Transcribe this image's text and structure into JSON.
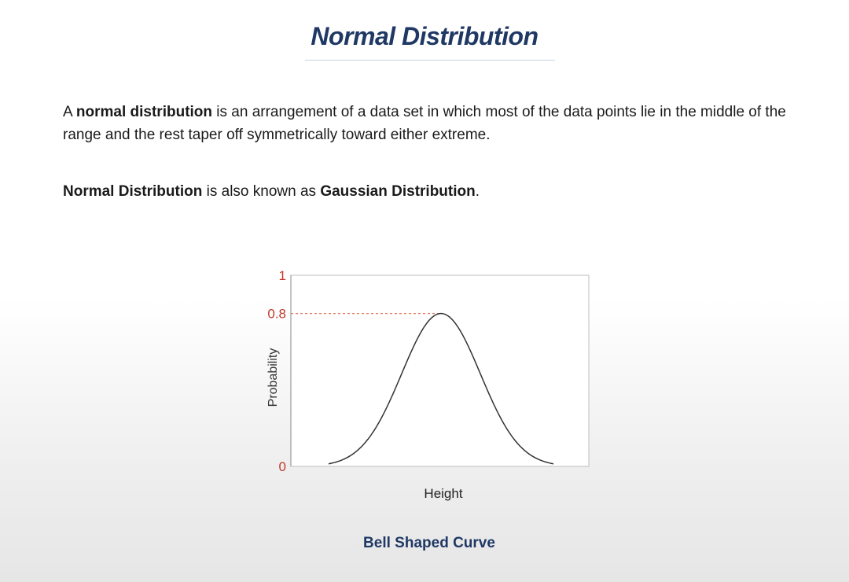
{
  "slide": {
    "title": "Normal Distribution",
    "paragraph1": {
      "pre": "A ",
      "bold": "normal distribution",
      "post": " is an arrangement of a data set in which most of the data points lie in the middle of the range and the rest taper off symmetrically toward either extreme."
    },
    "paragraph2": {
      "bold1": "Normal Distribution",
      "mid": " is also known as ",
      "bold2": "Gaussian Distribution",
      "end": "."
    },
    "caption": "Bell Shaped Curve"
  },
  "chart_data": {
    "type": "line",
    "xlabel": "Height",
    "ylabel": "Probability",
    "ylim": [
      0,
      1
    ],
    "yticks": [
      "0",
      "0.8",
      "1"
    ],
    "peak": 0.8,
    "grid": false,
    "tick_color": "#c0392b",
    "curve_color": "#333333"
  }
}
